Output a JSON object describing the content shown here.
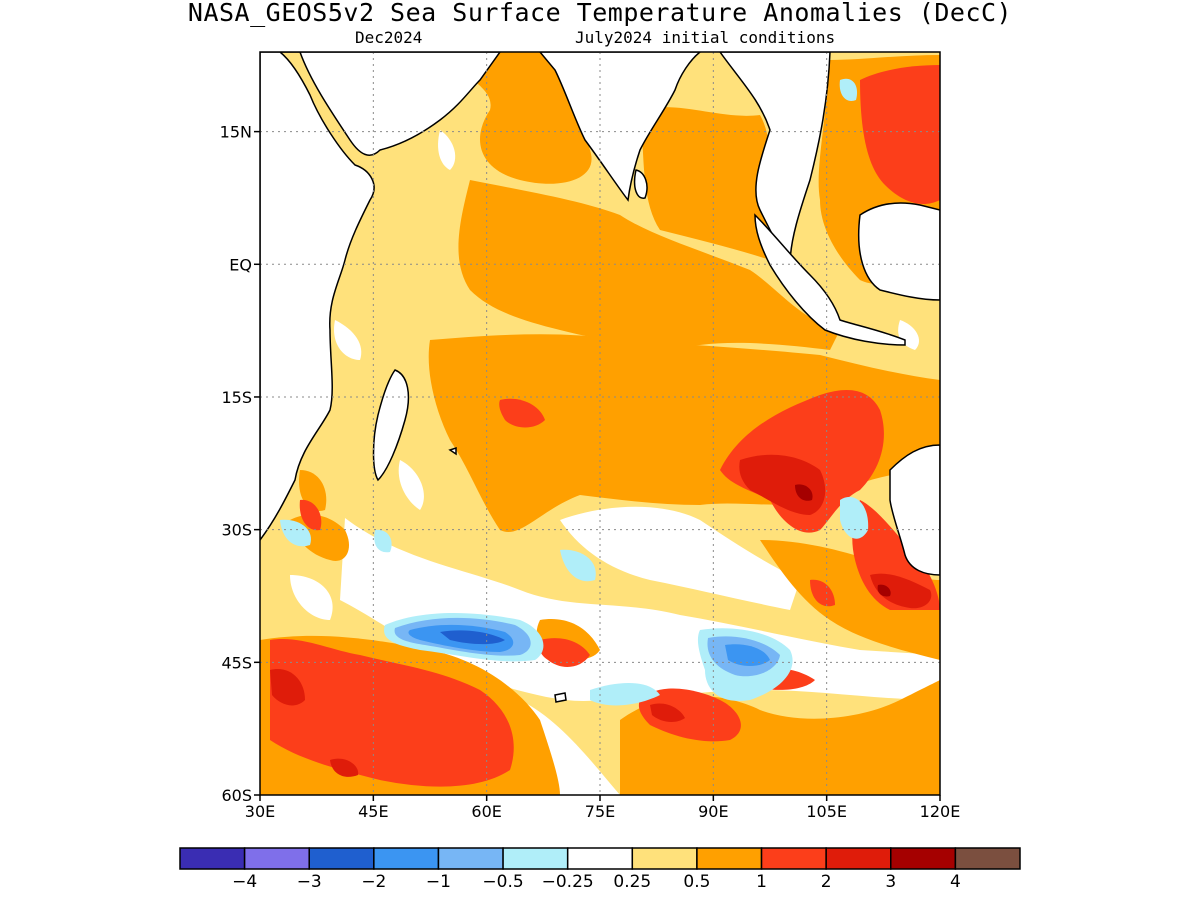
{
  "title": "NASA_GEOS5v2 Sea Surface Temperature Anomalies (DecC)",
  "subtitle_left": "Dec2024",
  "subtitle_right": "July2024 initial conditions",
  "map": {
    "lon_range": [
      30,
      120
    ],
    "lat_range": [
      -60,
      24
    ],
    "x_ticks": [
      {
        "lon": 30,
        "label": "30E"
      },
      {
        "lon": 45,
        "label": "45E"
      },
      {
        "lon": 60,
        "label": "60E"
      },
      {
        "lon": 75,
        "label": "75E"
      },
      {
        "lon": 90,
        "label": "90E"
      },
      {
        "lon": 105,
        "label": "105E"
      },
      {
        "lon": 120,
        "label": "120E"
      }
    ],
    "y_ticks": [
      {
        "lat": 15,
        "label": "15N"
      },
      {
        "lat": 0,
        "label": "EQ"
      },
      {
        "lat": -15,
        "label": "15S"
      },
      {
        "lat": -30,
        "label": "30S"
      },
      {
        "lat": -45,
        "label": "45S"
      },
      {
        "lat": -60,
        "label": "60S"
      }
    ],
    "gridlines": true,
    "background_anomaly_color": "#ffe17b"
  },
  "colorbar": {
    "colors": [
      "#3a2db3",
      "#7f6fea",
      "#1f5fcf",
      "#3b95f2",
      "#77b6f5",
      "#b0eef9",
      "#ffffff",
      "#ffe17b",
      "#ffa000",
      "#fc3e1a",
      "#df1c0a",
      "#a50000",
      "#7b4f3f"
    ],
    "labels": [
      "−4",
      "−3",
      "−2",
      "−1",
      "−0.5",
      "−0.25",
      "0.25",
      "0.5",
      "1",
      "2",
      "3",
      "4"
    ]
  }
}
